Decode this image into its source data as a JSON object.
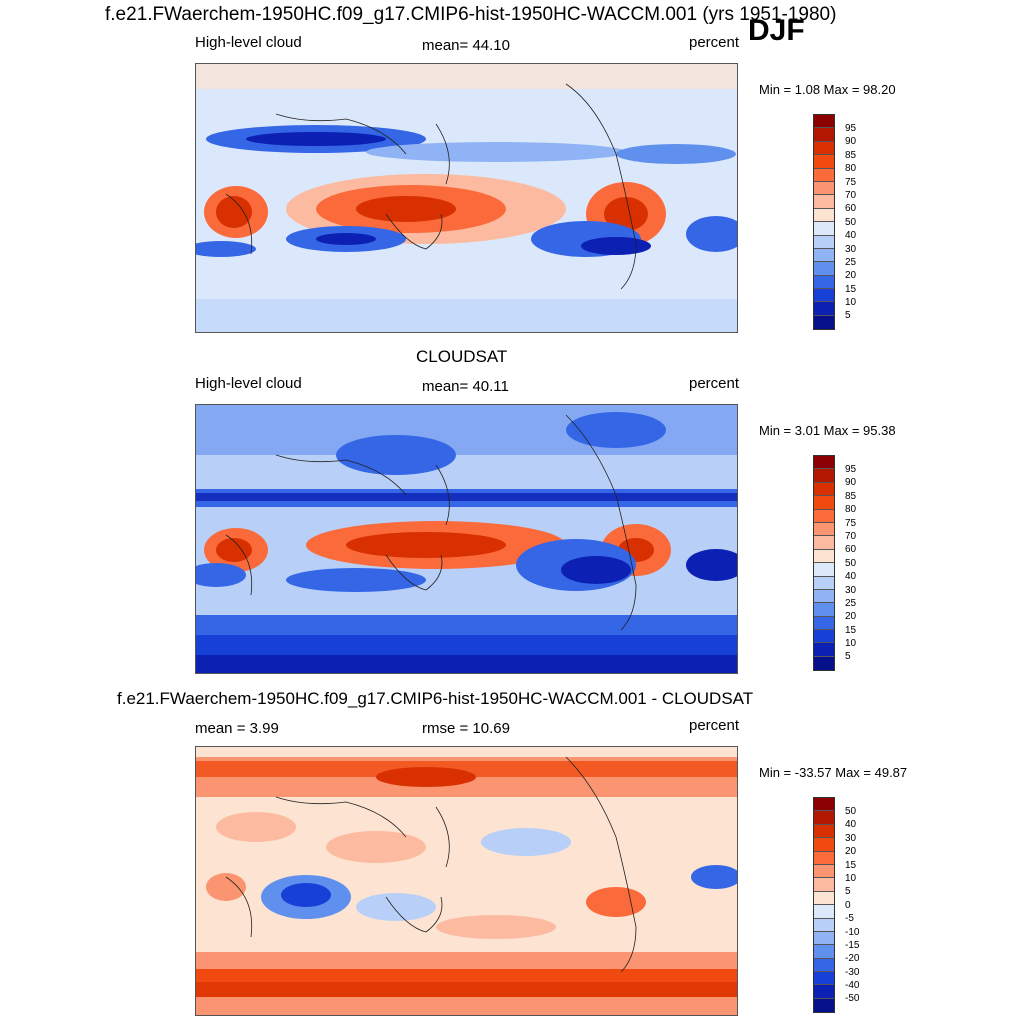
{
  "figure": {
    "title": "f.e21.FWaerchem-1950HC.f09_g17.CMIP6-hist-1950HC-WACCM.001 (yrs 1951-1980)",
    "season": "DJF"
  },
  "panels": [
    {
      "title": "",
      "left_label": "High-level cloud",
      "center_label": "mean=  44.10",
      "right_label": "percent",
      "minmax": "Min =   1.08 Max =  98.20",
      "colorbar_ticks": [
        "95",
        "90",
        "85",
        "80",
        "75",
        "70",
        "60",
        "50",
        "40",
        "30",
        "25",
        "20",
        "15",
        "10",
        "5"
      ]
    },
    {
      "title": "CLOUDSAT",
      "left_label": "High-level cloud",
      "center_label": "mean=  40.11",
      "right_label": "percent",
      "minmax": "Min =   3.01 Max =  95.38",
      "colorbar_ticks": [
        "95",
        "90",
        "85",
        "80",
        "75",
        "70",
        "60",
        "50",
        "40",
        "30",
        "25",
        "20",
        "15",
        "10",
        "5"
      ]
    },
    {
      "title": "f.e21.FWaerchem-1950HC.f09_g17.CMIP6-hist-1950HC-WACCM.001 - CLOUDSAT",
      "left_label": "mean =   3.99",
      "center_label": "rmse =  10.69",
      "right_label": "percent",
      "minmax": "Min = -33.57 Max =  49.87",
      "colorbar_ticks": [
        "50",
        "40",
        "30",
        "20",
        "15",
        "10",
        "5",
        "0",
        "-5",
        "-10",
        "-15",
        "-20",
        "-30",
        "-40",
        "-50"
      ]
    }
  ],
  "colorbar_colors": [
    "#8b0000",
    "#b21800",
    "#d83000",
    "#f04a10",
    "#fb6a3a",
    "#fb9470",
    "#fcbba0",
    "#fde3d2",
    "#dde9fb",
    "#b8d0f8",
    "#8fb3f4",
    "#6090ee",
    "#3466e6",
    "#1640d6",
    "#0c20b4",
    "#06108a"
  ]
}
